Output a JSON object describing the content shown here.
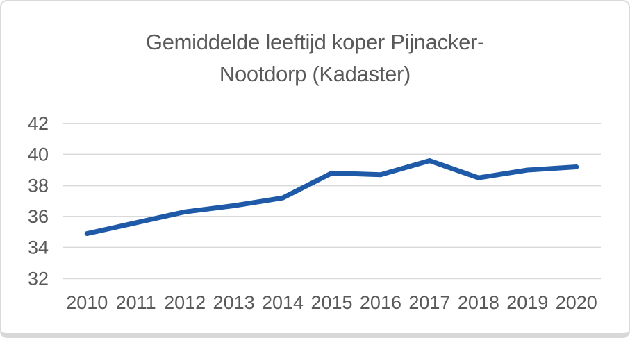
{
  "chart_data": {
    "type": "line",
    "title": "Gemiddelde leeftijd koper Pijnacker-Nootdorp (Kadaster)",
    "title_lines": [
      "Gemiddelde leeftijd koper Pijnacker-",
      "Nootdorp (Kadaster)"
    ],
    "categories": [
      "2010",
      "2011",
      "2012",
      "2013",
      "2014",
      "2015",
      "2016",
      "2017",
      "2018",
      "2019",
      "2020"
    ],
    "values": [
      34.9,
      35.6,
      36.3,
      36.7,
      37.2,
      38.8,
      38.7,
      39.6,
      38.5,
      39.0,
      39.2
    ],
    "xlabel": "",
    "ylabel": "",
    "ylim": [
      32,
      42
    ],
    "yticks": [
      32,
      34,
      36,
      38,
      40,
      42
    ],
    "grid": true,
    "legend": false,
    "colors": {
      "line": "#1E5AA8",
      "grid": "#D9D9D9",
      "text": "#595959",
      "border": "#D9D9D9",
      "background": "#FFFFFF"
    }
  }
}
